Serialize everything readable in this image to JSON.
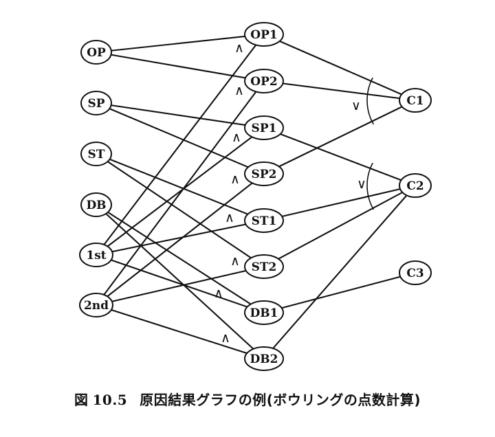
{
  "diagram": {
    "nodes": [
      {
        "id": "OP",
        "label": "OP"
      },
      {
        "id": "SP",
        "label": "SP"
      },
      {
        "id": "ST",
        "label": "ST"
      },
      {
        "id": "DB",
        "label": "DB"
      },
      {
        "id": "1st",
        "label": "1st"
      },
      {
        "id": "2nd",
        "label": "2nd"
      },
      {
        "id": "OP1",
        "label": "OP1"
      },
      {
        "id": "OP2",
        "label": "OP2"
      },
      {
        "id": "SP1",
        "label": "SP1"
      },
      {
        "id": "SP2",
        "label": "SP2"
      },
      {
        "id": "ST1",
        "label": "ST1"
      },
      {
        "id": "ST2",
        "label": "ST2"
      },
      {
        "id": "DB1",
        "label": "DB1"
      },
      {
        "id": "DB2",
        "label": "DB2"
      },
      {
        "id": "C1",
        "label": "C1"
      },
      {
        "id": "C2",
        "label": "C2"
      },
      {
        "id": "C3",
        "label": "C3"
      }
    ],
    "edges": [
      [
        "OP",
        "OP1"
      ],
      [
        "OP",
        "OP2"
      ],
      [
        "SP",
        "SP1"
      ],
      [
        "SP",
        "SP2"
      ],
      [
        "ST",
        "ST1"
      ],
      [
        "ST",
        "ST2"
      ],
      [
        "DB",
        "DB1"
      ],
      [
        "DB",
        "DB2"
      ],
      [
        "1st",
        "OP1"
      ],
      [
        "1st",
        "SP1"
      ],
      [
        "1st",
        "ST1"
      ],
      [
        "1st",
        "DB1"
      ],
      [
        "2nd",
        "OP2"
      ],
      [
        "2nd",
        "SP2"
      ],
      [
        "2nd",
        "ST2"
      ],
      [
        "2nd",
        "DB2"
      ],
      [
        "OP1",
        "C1"
      ],
      [
        "OP2",
        "C1"
      ],
      [
        "SP2",
        "C1"
      ],
      [
        "SP1",
        "C2"
      ],
      [
        "ST1",
        "C2"
      ],
      [
        "ST2",
        "C2"
      ],
      [
        "DB2",
        "C2"
      ],
      [
        "DB1",
        "C3"
      ]
    ],
    "and_symbol": "∧",
    "or_symbol": "∨"
  },
  "caption": {
    "figure_label": "図",
    "figure_number": "10.5",
    "text": "原因結果グラフの例(ボウリングの点数計算)"
  }
}
